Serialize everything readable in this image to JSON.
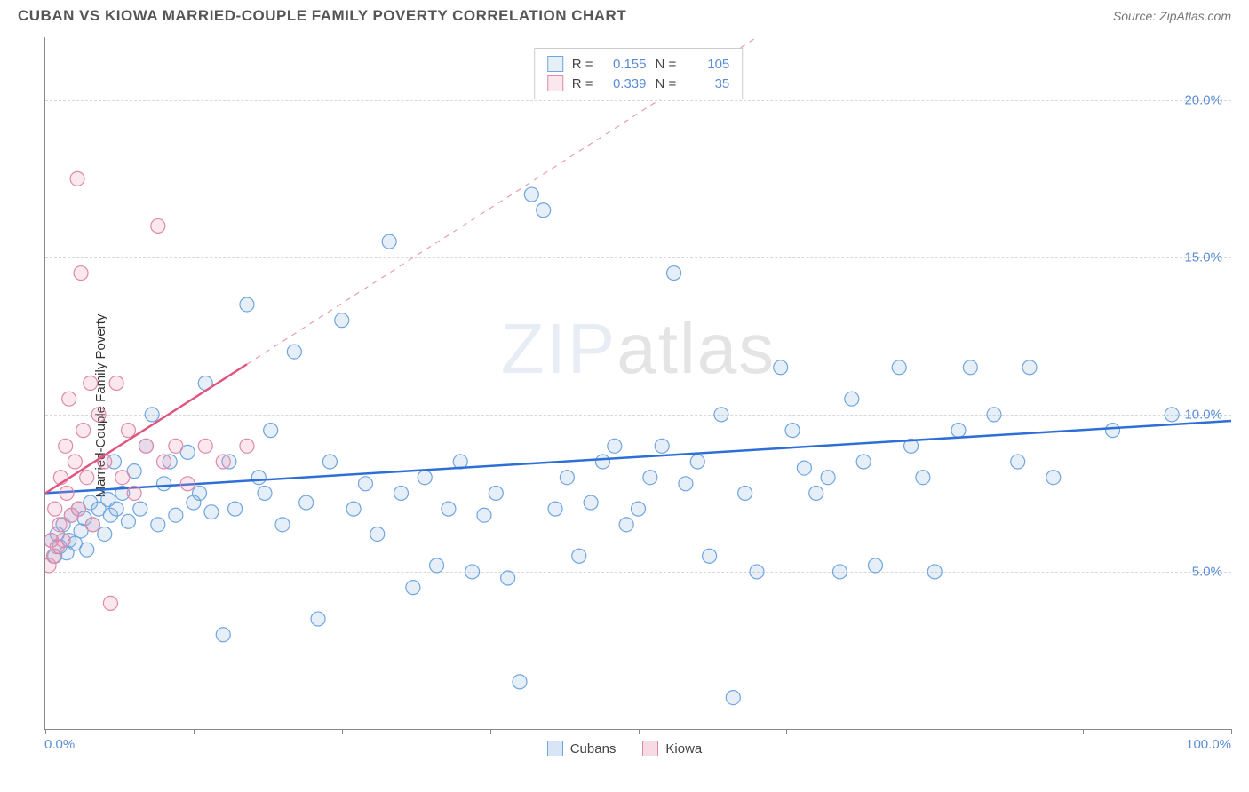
{
  "title": "CUBAN VS KIOWA MARRIED-COUPLE FAMILY POVERTY CORRELATION CHART",
  "source": "Source: ZipAtlas.com",
  "y_axis_label": "Married-Couple Family Poverty",
  "watermark_zip": "ZIP",
  "watermark_atlas": "atlas",
  "chart": {
    "type": "scatter",
    "xlim": [
      0,
      100
    ],
    "ylim": [
      0,
      22
    ],
    "x_tick_positions": [
      0,
      12.5,
      25,
      37.5,
      50,
      62.5,
      75,
      87.5,
      100
    ],
    "x_tick_labels_shown": {
      "left": "0.0%",
      "right": "100.0%"
    },
    "y_ticks": [
      5,
      10,
      15,
      20
    ],
    "y_tick_labels": [
      "5.0%",
      "10.0%",
      "15.0%",
      "20.0%"
    ],
    "background_color": "#ffffff",
    "grid_color": "#d8d8d8",
    "axis_color": "#888888",
    "tick_label_color": "#5b8dd6",
    "marker_radius": 8,
    "marker_stroke_width": 1.2,
    "marker_fill_opacity": 0.15,
    "series": [
      {
        "name": "Cubans",
        "stroke": "#6fa5e0",
        "fill": "rgba(140,180,225,0.22)",
        "trend_line": {
          "x1": 0,
          "y1": 7.5,
          "x2": 100,
          "y2": 9.8,
          "color": "#2d6fd6",
          "width": 2.5,
          "dashed": false
        },
        "stats": {
          "R": "0.155",
          "N": "105"
        },
        "points": [
          [
            0.5,
            6.0
          ],
          [
            0.8,
            5.5
          ],
          [
            1.0,
            6.2
          ],
          [
            1.2,
            5.8
          ],
          [
            1.5,
            6.5
          ],
          [
            1.8,
            5.6
          ],
          [
            2.0,
            6.0
          ],
          [
            2.2,
            6.8
          ],
          [
            2.5,
            5.9
          ],
          [
            2.8,
            7.0
          ],
          [
            3.0,
            6.3
          ],
          [
            3.3,
            6.7
          ],
          [
            3.5,
            5.7
          ],
          [
            3.8,
            7.2
          ],
          [
            4.0,
            6.5
          ],
          [
            4.5,
            7.0
          ],
          [
            5.0,
            6.2
          ],
          [
            5.3,
            7.3
          ],
          [
            5.5,
            6.8
          ],
          [
            5.8,
            8.5
          ],
          [
            6.0,
            7.0
          ],
          [
            6.5,
            7.5
          ],
          [
            7.0,
            6.6
          ],
          [
            7.5,
            8.2
          ],
          [
            8.0,
            7.0
          ],
          [
            8.5,
            9.0
          ],
          [
            9.0,
            10.0
          ],
          [
            9.5,
            6.5
          ],
          [
            10.0,
            7.8
          ],
          [
            10.5,
            8.5
          ],
          [
            11.0,
            6.8
          ],
          [
            12.0,
            8.8
          ],
          [
            12.5,
            7.2
          ],
          [
            13.0,
            7.5
          ],
          [
            13.5,
            11.0
          ],
          [
            14.0,
            6.9
          ],
          [
            15.0,
            3.0
          ],
          [
            15.5,
            8.5
          ],
          [
            16.0,
            7.0
          ],
          [
            17.0,
            13.5
          ],
          [
            18.0,
            8.0
          ],
          [
            18.5,
            7.5
          ],
          [
            19.0,
            9.5
          ],
          [
            20.0,
            6.5
          ],
          [
            21.0,
            12.0
          ],
          [
            22.0,
            7.2
          ],
          [
            23.0,
            3.5
          ],
          [
            24.0,
            8.5
          ],
          [
            25.0,
            13.0
          ],
          [
            26.0,
            7.0
          ],
          [
            27.0,
            7.8
          ],
          [
            28.0,
            6.2
          ],
          [
            29.0,
            15.5
          ],
          [
            30.0,
            7.5
          ],
          [
            31.0,
            4.5
          ],
          [
            32.0,
            8.0
          ],
          [
            33.0,
            5.2
          ],
          [
            34.0,
            7.0
          ],
          [
            35.0,
            8.5
          ],
          [
            36.0,
            5.0
          ],
          [
            37.0,
            6.8
          ],
          [
            38.0,
            7.5
          ],
          [
            39.0,
            4.8
          ],
          [
            40.0,
            1.5
          ],
          [
            41.0,
            17.0
          ],
          [
            42.0,
            16.5
          ],
          [
            43.0,
            7.0
          ],
          [
            44.0,
            8.0
          ],
          [
            45.0,
            5.5
          ],
          [
            46.0,
            7.2
          ],
          [
            47.0,
            8.5
          ],
          [
            48.0,
            9.0
          ],
          [
            49.0,
            6.5
          ],
          [
            50.0,
            7.0
          ],
          [
            51.0,
            8.0
          ],
          [
            52.0,
            9.0
          ],
          [
            53.0,
            14.5
          ],
          [
            54.0,
            7.8
          ],
          [
            55.0,
            8.5
          ],
          [
            56.0,
            5.5
          ],
          [
            57.0,
            10.0
          ],
          [
            58.0,
            1.0
          ],
          [
            59.0,
            7.5
          ],
          [
            60.0,
            5.0
          ],
          [
            62.0,
            11.5
          ],
          [
            63.0,
            9.5
          ],
          [
            64.0,
            8.3
          ],
          [
            65.0,
            7.5
          ],
          [
            66.0,
            8.0
          ],
          [
            67.0,
            5.0
          ],
          [
            68.0,
            10.5
          ],
          [
            69.0,
            8.5
          ],
          [
            70.0,
            5.2
          ],
          [
            72.0,
            11.5
          ],
          [
            73.0,
            9.0
          ],
          [
            74.0,
            8.0
          ],
          [
            75.0,
            5.0
          ],
          [
            77.0,
            9.5
          ],
          [
            78.0,
            11.5
          ],
          [
            80.0,
            10.0
          ],
          [
            82.0,
            8.5
          ],
          [
            83.0,
            11.5
          ],
          [
            85.0,
            8.0
          ],
          [
            90.0,
            9.5
          ],
          [
            95.0,
            10.0
          ]
        ]
      },
      {
        "name": "Kiowa",
        "stroke": "#e089a8",
        "fill": "rgba(235,150,180,0.22)",
        "trend_line": {
          "x1": 0,
          "y1": 7.5,
          "x2": 17,
          "y2": 11.6,
          "color": "#e05580",
          "width": 2.5,
          "dashed": false
        },
        "trend_line_ext": {
          "x1": 17,
          "y1": 11.6,
          "x2": 60,
          "y2": 22,
          "color": "#e89bb5",
          "width": 1.2,
          "dashed": true
        },
        "stats": {
          "R": "0.339",
          "N": "35"
        },
        "points": [
          [
            0.3,
            5.2
          ],
          [
            0.5,
            6.0
          ],
          [
            0.7,
            5.5
          ],
          [
            0.8,
            7.0
          ],
          [
            1.0,
            5.8
          ],
          [
            1.2,
            6.5
          ],
          [
            1.3,
            8.0
          ],
          [
            1.5,
            6.0
          ],
          [
            1.7,
            9.0
          ],
          [
            1.8,
            7.5
          ],
          [
            2.0,
            10.5
          ],
          [
            2.2,
            6.8
          ],
          [
            2.5,
            8.5
          ],
          [
            2.7,
            17.5
          ],
          [
            2.8,
            7.0
          ],
          [
            3.0,
            14.5
          ],
          [
            3.2,
            9.5
          ],
          [
            3.5,
            8.0
          ],
          [
            3.8,
            11.0
          ],
          [
            4.0,
            6.5
          ],
          [
            4.5,
            10.0
          ],
          [
            5.0,
            8.5
          ],
          [
            5.5,
            4.0
          ],
          [
            6.0,
            11.0
          ],
          [
            6.5,
            8.0
          ],
          [
            7.0,
            9.5
          ],
          [
            7.5,
            7.5
          ],
          [
            8.5,
            9.0
          ],
          [
            9.5,
            16.0
          ],
          [
            10.0,
            8.5
          ],
          [
            11.0,
            9.0
          ],
          [
            12.0,
            7.8
          ],
          [
            13.5,
            9.0
          ],
          [
            15.0,
            8.5
          ],
          [
            17.0,
            9.0
          ]
        ]
      }
    ]
  },
  "bottom_legend": [
    {
      "label": "Cubans",
      "fill": "rgba(140,180,225,0.35)",
      "stroke": "#6fa5e0"
    },
    {
      "label": "Kiowa",
      "fill": "rgba(235,150,180,0.35)",
      "stroke": "#e089a8"
    }
  ],
  "stats_box": {
    "R_label": "R =",
    "N_label": "N ="
  }
}
